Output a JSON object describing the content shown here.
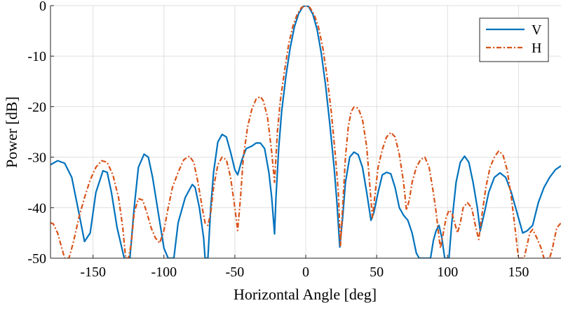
{
  "chart_data": {
    "type": "line",
    "title": "",
    "xlabel": "Horizontal Angle [deg]",
    "ylabel": "Power [dB]",
    "xlim": [
      -180,
      180
    ],
    "ylim": [
      -50,
      0
    ],
    "xticks": [
      -150,
      -100,
      -50,
      0,
      50,
      100,
      150
    ],
    "yticks": [
      0,
      -10,
      -20,
      -30,
      -40,
      -50
    ],
    "xtick_labels": [
      "-150",
      "-100",
      "-50",
      "0",
      "50",
      "100",
      "150"
    ],
    "ytick_labels": [
      "0",
      "-10",
      "-20",
      "-30",
      "-40",
      "-50"
    ],
    "grid": true,
    "legend_position": "top-right",
    "series": [
      {
        "name": "V",
        "color": "#0072BD",
        "style": "solid",
        "points": [
          [
            -180,
            -31.5
          ],
          [
            -175,
            -30.7
          ],
          [
            -170,
            -31.2
          ],
          [
            -165,
            -34
          ],
          [
            -160,
            -41
          ],
          [
            -156,
            -46.7
          ],
          [
            -152,
            -45
          ],
          [
            -148,
            -37
          ],
          [
            -143,
            -32.7
          ],
          [
            -140,
            -33
          ],
          [
            -137,
            -37
          ],
          [
            -133,
            -44
          ],
          [
            -128,
            -50
          ],
          [
            -124,
            -50
          ],
          [
            -121,
            -40
          ],
          [
            -118,
            -32
          ],
          [
            -114,
            -29.4
          ],
          [
            -111,
            -30
          ],
          [
            -108,
            -34
          ],
          [
            -104,
            -41
          ],
          [
            -100,
            -48
          ],
          [
            -97,
            -50
          ],
          [
            -93,
            -50
          ],
          [
            -90,
            -43
          ],
          [
            -85,
            -38
          ],
          [
            -80,
            -35.4
          ],
          [
            -78,
            -36
          ],
          [
            -75,
            -40
          ],
          [
            -72,
            -46
          ],
          [
            -71,
            -50
          ],
          [
            -69,
            -50
          ],
          [
            -67,
            -40
          ],
          [
            -65,
            -33
          ],
          [
            -62,
            -27
          ],
          [
            -59,
            -25.5
          ],
          [
            -56,
            -26
          ],
          [
            -53,
            -29
          ],
          [
            -50,
            -32.5
          ],
          [
            -48,
            -33.5
          ],
          [
            -45,
            -30.5
          ],
          [
            -42,
            -28.3
          ],
          [
            -38,
            -27.8
          ],
          [
            -35,
            -27.2
          ],
          [
            -32,
            -27.2
          ],
          [
            -29,
            -28.3
          ],
          [
            -26,
            -33
          ],
          [
            -24,
            -38
          ],
          [
            -22,
            -45.2
          ],
          [
            -21,
            -38
          ],
          [
            -19,
            -28
          ],
          [
            -17,
            -21
          ],
          [
            -14,
            -14
          ],
          [
            -11,
            -8.4
          ],
          [
            -8,
            -4.2
          ],
          [
            -5,
            -1.6
          ],
          [
            -2,
            -0.2
          ],
          [
            0,
            0
          ],
          [
            2,
            -0.2
          ],
          [
            5,
            -1.7
          ],
          [
            8,
            -4.7
          ],
          [
            11,
            -9.5
          ],
          [
            14,
            -15.8
          ],
          [
            17,
            -23.5
          ],
          [
            20,
            -32
          ],
          [
            22,
            -39
          ],
          [
            24,
            -47.8
          ],
          [
            26,
            -42
          ],
          [
            28,
            -35
          ],
          [
            31,
            -30
          ],
          [
            34,
            -29
          ],
          [
            37,
            -29.5
          ],
          [
            40,
            -32
          ],
          [
            43,
            -37
          ],
          [
            46,
            -42.5
          ],
          [
            48,
            -41
          ],
          [
            51,
            -37
          ],
          [
            54,
            -33.5
          ],
          [
            57,
            -33
          ],
          [
            60,
            -33.3
          ],
          [
            63,
            -36
          ],
          [
            66,
            -40
          ],
          [
            69,
            -41.5
          ],
          [
            72,
            -42.5
          ],
          [
            75,
            -45
          ],
          [
            78,
            -49
          ],
          [
            80,
            -50
          ],
          [
            88,
            -50
          ],
          [
            90,
            -46.5
          ],
          [
            92,
            -44.5
          ],
          [
            94,
            -43.5
          ],
          [
            96,
            -46
          ],
          [
            98,
            -50
          ],
          [
            101,
            -50
          ],
          [
            103,
            -43
          ],
          [
            106,
            -35
          ],
          [
            109,
            -31
          ],
          [
            112,
            -29.8
          ],
          [
            115,
            -31
          ],
          [
            118,
            -35
          ],
          [
            121,
            -40
          ],
          [
            123,
            -44.6
          ],
          [
            126,
            -41
          ],
          [
            129,
            -37
          ],
          [
            133,
            -34
          ],
          [
            137,
            -33.1
          ],
          [
            141,
            -34
          ],
          [
            145,
            -37
          ],
          [
            149,
            -41
          ],
          [
            153,
            -45
          ],
          [
            156,
            -44.6
          ],
          [
            160,
            -43.5
          ],
          [
            164,
            -39
          ],
          [
            168,
            -36
          ],
          [
            172,
            -34
          ],
          [
            176,
            -32.5
          ],
          [
            180,
            -31.7
          ]
        ]
      },
      {
        "name": "H",
        "color": "#D95319",
        "style": "dashdot",
        "points": [
          [
            -180,
            -43
          ],
          [
            -178,
            -43.2
          ],
          [
            -175,
            -45
          ],
          [
            -172,
            -48
          ],
          [
            -170,
            -50
          ],
          [
            -167,
            -50
          ],
          [
            -164,
            -47
          ],
          [
            -160,
            -42
          ],
          [
            -156,
            -38
          ],
          [
            -152,
            -34.5
          ],
          [
            -148,
            -32
          ],
          [
            -144,
            -30.7
          ],
          [
            -140,
            -31
          ],
          [
            -136,
            -33.5
          ],
          [
            -132,
            -38
          ],
          [
            -129,
            -44
          ],
          [
            -127,
            -50
          ],
          [
            -125,
            -50
          ],
          [
            -123,
            -47
          ],
          [
            -121,
            -41
          ],
          [
            -118,
            -38.2
          ],
          [
            -115,
            -38.5
          ],
          [
            -112,
            -41
          ],
          [
            -109,
            -44
          ],
          [
            -106,
            -46
          ],
          [
            -103,
            -47
          ],
          [
            -100,
            -44.5
          ],
          [
            -97,
            -40
          ],
          [
            -94,
            -36
          ],
          [
            -90,
            -33
          ],
          [
            -86,
            -30.5
          ],
          [
            -82,
            -29.8
          ],
          [
            -79,
            -31
          ],
          [
            -76,
            -35
          ],
          [
            -73,
            -40
          ],
          [
            -71,
            -43
          ],
          [
            -69,
            -43.5
          ],
          [
            -67,
            -41
          ],
          [
            -65,
            -36
          ],
          [
            -62,
            -31.5
          ],
          [
            -59,
            -30
          ],
          [
            -56,
            -30.5
          ],
          [
            -53,
            -34
          ],
          [
            -50,
            -40
          ],
          [
            -48,
            -44.5
          ],
          [
            -46,
            -38
          ],
          [
            -44,
            -30
          ],
          [
            -41,
            -24
          ],
          [
            -38,
            -20.5
          ],
          [
            -35,
            -18.5
          ],
          [
            -32,
            -18
          ],
          [
            -30,
            -18.8
          ],
          [
            -27,
            -22
          ],
          [
            -24,
            -29
          ],
          [
            -22,
            -35
          ],
          [
            -20,
            -25
          ],
          [
            -18,
            -19
          ],
          [
            -15,
            -13
          ],
          [
            -12,
            -7.6
          ],
          [
            -9,
            -4
          ],
          [
            -6,
            -1.7
          ],
          [
            -3,
            -0.4
          ],
          [
            0,
            0
          ],
          [
            3,
            -0.4
          ],
          [
            6,
            -1.8
          ],
          [
            9,
            -4.3
          ],
          [
            12,
            -8.3
          ],
          [
            15,
            -14
          ],
          [
            18,
            -21
          ],
          [
            21,
            -30
          ],
          [
            23,
            -37
          ],
          [
            24.5,
            -47.5
          ],
          [
            26,
            -40
          ],
          [
            28,
            -30
          ],
          [
            30,
            -24
          ],
          [
            32,
            -21
          ],
          [
            34,
            -20.1
          ],
          [
            37,
            -20.3
          ],
          [
            40,
            -22.5
          ],
          [
            43,
            -28
          ],
          [
            45,
            -35
          ],
          [
            47,
            -42
          ],
          [
            49,
            -37
          ],
          [
            51,
            -32
          ],
          [
            54,
            -28.5
          ],
          [
            57,
            -26
          ],
          [
            60,
            -25.1
          ],
          [
            63,
            -26
          ],
          [
            66,
            -29.5
          ],
          [
            69,
            -35
          ],
          [
            71,
            -40.5
          ],
          [
            73,
            -38.5
          ],
          [
            75,
            -35
          ],
          [
            78,
            -32
          ],
          [
            81,
            -30.5
          ],
          [
            84,
            -30
          ],
          [
            87,
            -32
          ],
          [
            90,
            -37
          ],
          [
            92,
            -41
          ],
          [
            94,
            -46
          ],
          [
            95,
            -48
          ],
          [
            97,
            -45
          ],
          [
            99,
            -42
          ],
          [
            101,
            -40.5
          ],
          [
            103,
            -41
          ],
          [
            105,
            -43
          ],
          [
            106,
            -44
          ],
          [
            107,
            -45
          ],
          [
            109,
            -43
          ],
          [
            111,
            -40
          ],
          [
            114,
            -39
          ],
          [
            117,
            -40
          ],
          [
            120,
            -44
          ],
          [
            122,
            -46.3
          ],
          [
            124,
            -42
          ],
          [
            127,
            -36
          ],
          [
            130,
            -32
          ],
          [
            133,
            -30
          ],
          [
            136,
            -28.8
          ],
          [
            139,
            -29.5
          ],
          [
            142,
            -32.5
          ],
          [
            145,
            -38
          ],
          [
            148,
            -45
          ],
          [
            150,
            -50
          ],
          [
            154,
            -50
          ],
          [
            156,
            -47.5
          ],
          [
            158,
            -45
          ],
          [
            160,
            -44.3
          ],
          [
            163,
            -46
          ],
          [
            166,
            -48
          ],
          [
            168,
            -50
          ],
          [
            172,
            -50
          ],
          [
            174,
            -48
          ],
          [
            177,
            -44
          ],
          [
            180,
            -43
          ]
        ]
      }
    ]
  }
}
